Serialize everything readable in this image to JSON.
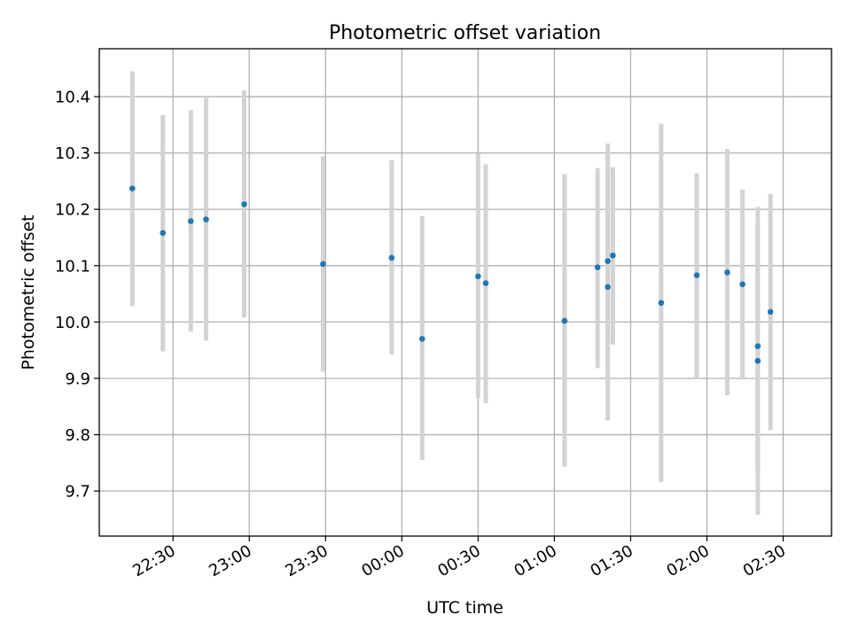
{
  "chart_data": {
    "type": "scatter",
    "title": "Photometric offset variation",
    "xlabel": "UTC time",
    "ylabel": "Photometric offset",
    "x_axis_kind": "time (HH:MM), spans midnight",
    "xlim": [
      "22:01",
      "02:49"
    ],
    "ylim": [
      9.62,
      10.485
    ],
    "x_ticks": [
      "22:30",
      "23:00",
      "23:30",
      "00:00",
      "00:30",
      "01:00",
      "01:30",
      "02:00",
      "02:30"
    ],
    "y_ticks": [
      "9.7",
      "9.8",
      "9.9",
      "10.0",
      "10.1",
      "10.2",
      "10.3",
      "10.4"
    ],
    "grid": true,
    "marker_color": "#1f77b4",
    "errorbar_color": "#d3d3d3",
    "points": [
      {
        "t": "22:14",
        "y": 10.237,
        "lo": 10.028,
        "hi": 10.445
      },
      {
        "t": "22:26",
        "y": 10.158,
        "lo": 9.948,
        "hi": 10.367
      },
      {
        "t": "22:37",
        "y": 10.179,
        "lo": 9.983,
        "hi": 10.376
      },
      {
        "t": "22:43",
        "y": 10.182,
        "lo": 9.967,
        "hi": 10.398
      },
      {
        "t": "22:58",
        "y": 10.209,
        "lo": 10.008,
        "hi": 10.411
      },
      {
        "t": "23:29",
        "y": 10.103,
        "lo": 9.912,
        "hi": 10.294
      },
      {
        "t": "23:56",
        "y": 10.114,
        "lo": 9.942,
        "hi": 10.287
      },
      {
        "t": "00:08",
        "y": 9.97,
        "lo": 9.755,
        "hi": 10.188
      },
      {
        "t": "00:30",
        "y": 10.081,
        "lo": 9.865,
        "hi": 10.299
      },
      {
        "t": "00:33",
        "y": 10.069,
        "lo": 9.856,
        "hi": 10.28
      },
      {
        "t": "01:04",
        "y": 10.002,
        "lo": 9.743,
        "hi": 10.262
      },
      {
        "t": "01:17",
        "y": 10.097,
        "lo": 9.918,
        "hi": 10.273
      },
      {
        "t": "01:21",
        "y": 10.062,
        "lo": 9.825,
        "hi": 10.302
      },
      {
        "t": "01:21",
        "y": 10.108,
        "lo": 9.9,
        "hi": 10.317
      },
      {
        "t": "01:23",
        "y": 10.118,
        "lo": 9.96,
        "hi": 10.275
      },
      {
        "t": "01:42",
        "y": 10.034,
        "lo": 9.716,
        "hi": 10.352
      },
      {
        "t": "01:56",
        "y": 10.083,
        "lo": 9.9,
        "hi": 10.264
      },
      {
        "t": "02:08",
        "y": 10.088,
        "lo": 9.87,
        "hi": 10.307
      },
      {
        "t": "02:14",
        "y": 10.067,
        "lo": 9.9,
        "hi": 10.235
      },
      {
        "t": "02:20",
        "y": 9.957,
        "lo": 9.74,
        "hi": 10.174
      },
      {
        "t": "02:20",
        "y": 9.931,
        "lo": 9.658,
        "hi": 10.204
      },
      {
        "t": "02:25",
        "y": 10.018,
        "lo": 9.808,
        "hi": 10.227
      }
    ]
  }
}
